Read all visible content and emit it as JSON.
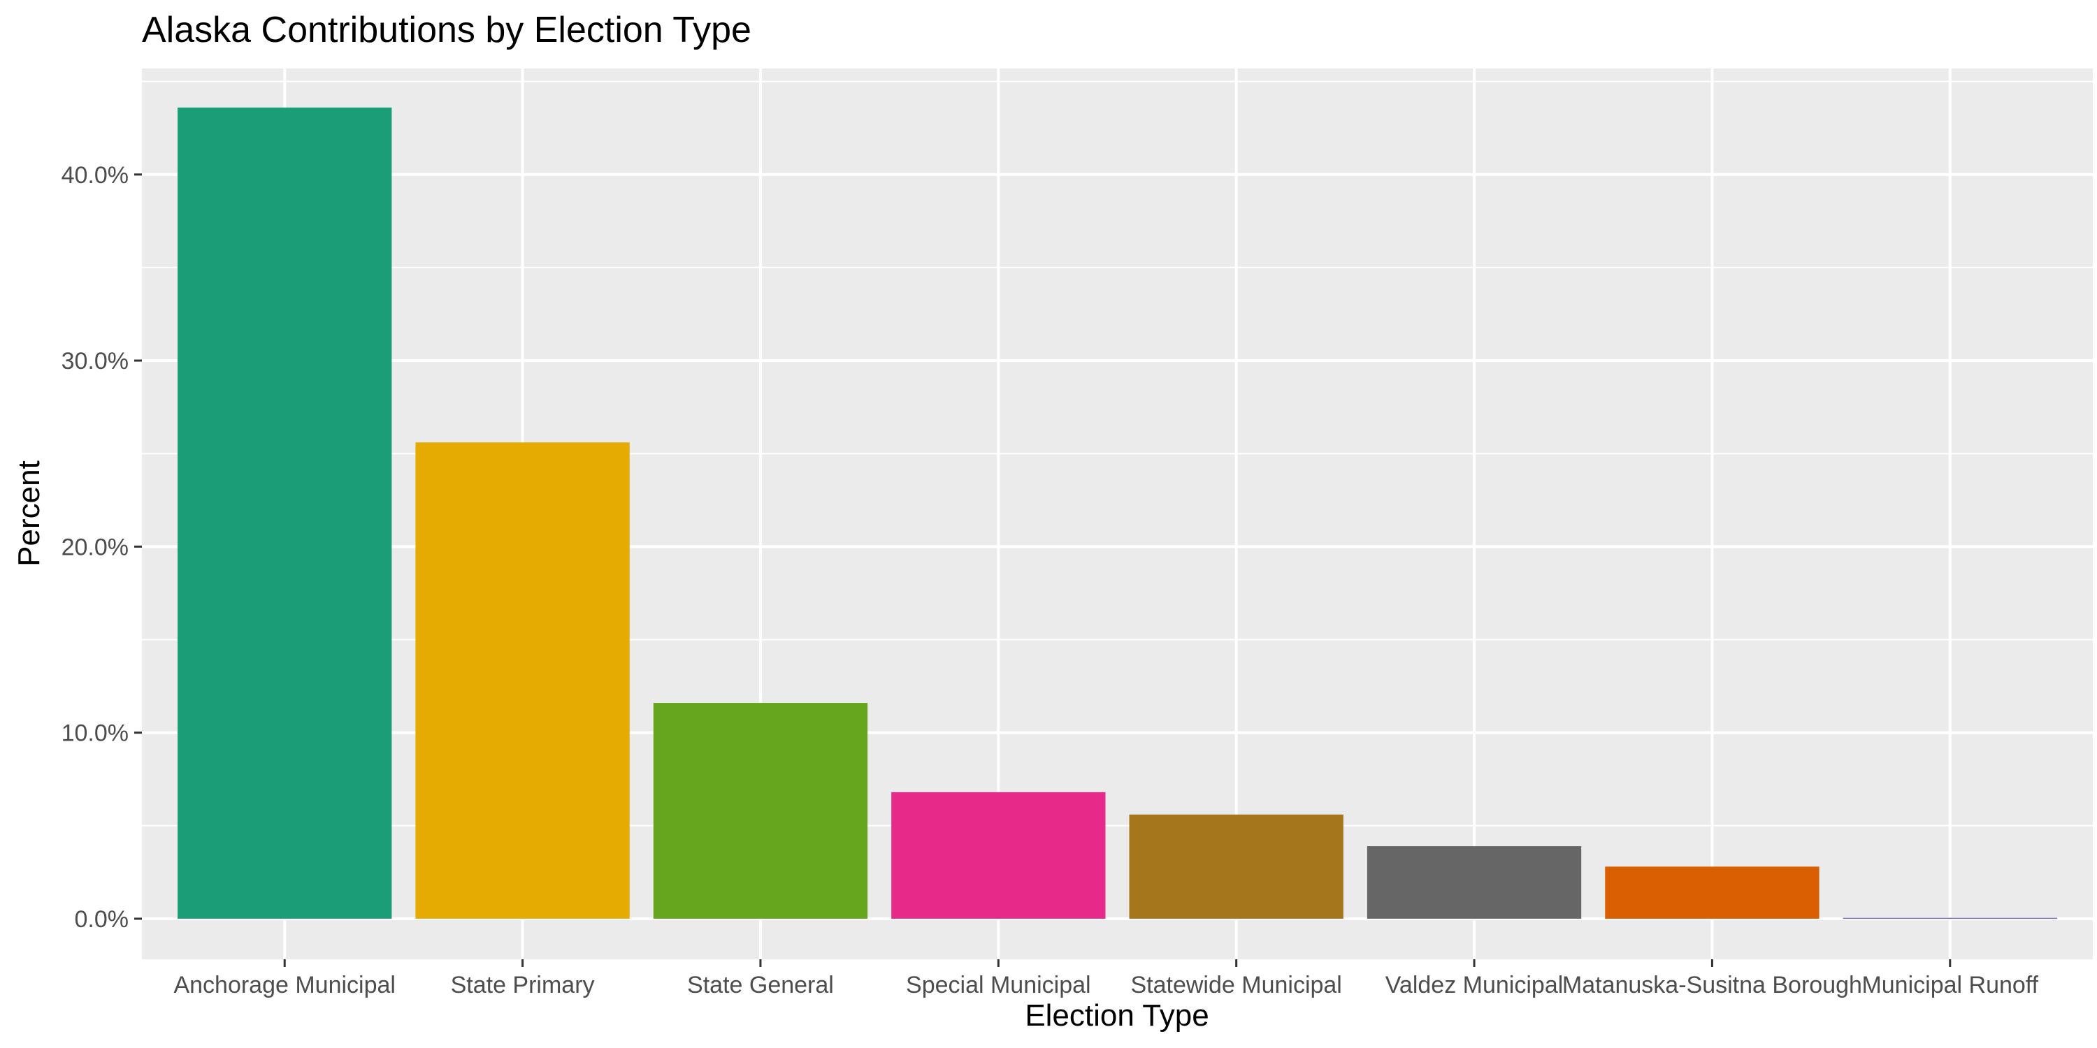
{
  "chart_data": {
    "type": "bar",
    "title": "Alaska Contributions by Election Type",
    "xlabel": "Election Type",
    "ylabel": "Percent",
    "categories": [
      "Anchorage Municipal",
      "State Primary",
      "State General",
      "Special Municipal",
      "Statewide Municipal",
      "Valdez Municipal",
      "Matanuska-Susitna Borough",
      "Municipal Runoff"
    ],
    "values": [
      43.6,
      25.6,
      11.6,
      6.8,
      5.6,
      3.9,
      2.8,
      0.05
    ],
    "colors": [
      "#1b9e77",
      "#e6ab02",
      "#66a61e",
      "#e7298a",
      "#a6761d",
      "#666666",
      "#d95f02",
      "#7570b3"
    ],
    "y_ticks": [
      0,
      10,
      20,
      30,
      40
    ],
    "y_tick_labels": [
      "0.0%",
      "10.0%",
      "20.0%",
      "30.0%",
      "40.0%"
    ],
    "ylim": [
      -2.18,
      45.7
    ],
    "grid": true,
    "legend": "none",
    "panel_background": "#ebebeb"
  }
}
